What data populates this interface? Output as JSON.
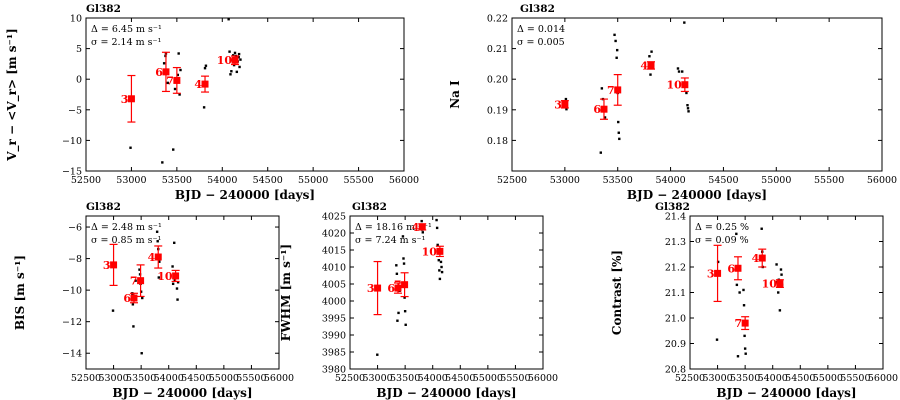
{
  "chart_data": [
    {
      "type": "scatter",
      "title": "Gl382",
      "xlabel": "BJD − 240000 [days]",
      "ylabel": "V_r − <V_r> [m s⁻¹]",
      "xlim": [
        52500,
        56000
      ],
      "ylim": [
        -15,
        10
      ],
      "xticks": [
        52500,
        53000,
        53500,
        54000,
        54500,
        55000,
        55500,
        56000
      ],
      "yticks": [
        -15,
        -10,
        -5,
        0,
        5,
        10
      ],
      "ytick_labels": [
        "−15",
        "−10",
        "−5",
        "0",
        "5",
        "10"
      ],
      "stats": [
        "Δ = 6.45 m s⁻¹",
        "σ = 2.14 m s⁻¹"
      ],
      "raw_points": [
        [
          52990,
          -11.2
        ],
        [
          53340,
          -13.6
        ],
        [
          53360,
          2.6
        ],
        [
          53375,
          3.8
        ],
        [
          53380,
          4.2
        ],
        [
          53390,
          1.0
        ],
        [
          53400,
          -0.6
        ],
        [
          53460,
          -11.5
        ],
        [
          53480,
          -1.6
        ],
        [
          53510,
          0.7
        ],
        [
          53520,
          4.2
        ],
        [
          53530,
          -2.5
        ],
        [
          53540,
          1.5
        ],
        [
          53800,
          -4.6
        ],
        [
          53810,
          1.8
        ],
        [
          53820,
          2.2
        ],
        [
          54070,
          9.8
        ],
        [
          54080,
          4.5
        ],
        [
          54090,
          0.8
        ],
        [
          54100,
          1.3
        ],
        [
          54110,
          3.1
        ],
        [
          54120,
          3.9
        ],
        [
          54130,
          2.3
        ],
        [
          54140,
          4.3
        ],
        [
          54150,
          3.8
        ],
        [
          54160,
          1.2
        ],
        [
          54170,
          2.9
        ],
        [
          54180,
          3.6
        ],
        [
          54185,
          4.1
        ],
        [
          54190,
          2.0
        ],
        [
          54200,
          3.2
        ]
      ],
      "bins": [
        {
          "label": "3",
          "x": 53000,
          "y": -3.2,
          "err": 3.8
        },
        {
          "label": "6",
          "x": 53380,
          "y": 1.2,
          "err": 3.2
        },
        {
          "label": "7",
          "x": 53500,
          "y": -0.2,
          "err": 2.1
        },
        {
          "label": "4",
          "x": 53810,
          "y": -0.8,
          "err": 1.3
        },
        {
          "label": "10",
          "x": 54140,
          "y": 3.1,
          "err": 0.7
        }
      ]
    },
    {
      "type": "scatter",
      "title": "Gl382",
      "xlabel": "BJD − 240000 [days]",
      "ylabel": "Na I",
      "xlim": [
        52500,
        56000
      ],
      "ylim": [
        0.17,
        0.22
      ],
      "xticks": [
        52500,
        53000,
        53500,
        54000,
        54500,
        55000,
        55500,
        56000
      ],
      "yticks": [
        0.17,
        0.18,
        0.19,
        0.2,
        0.21,
        0.22
      ],
      "ytick_labels": [
        "",
        "0.18",
        "0.19",
        "0.20",
        "0.21",
        "0.22"
      ],
      "stats": [
        "Δ = 0.014",
        "σ = 0.005"
      ],
      "raw_points": [
        [
          52995,
          0.1912
        ],
        [
          53010,
          0.1935
        ],
        [
          53015,
          0.1902
        ],
        [
          53340,
          0.176
        ],
        [
          53350,
          0.197
        ],
        [
          53360,
          0.1935
        ],
        [
          53380,
          0.1875
        ],
        [
          53470,
          0.2145
        ],
        [
          53480,
          0.2125
        ],
        [
          53490,
          0.207
        ],
        [
          53495,
          0.2095
        ],
        [
          53500,
          0.1955
        ],
        [
          53505,
          0.186
        ],
        [
          53510,
          0.1825
        ],
        [
          53515,
          0.1805
        ],
        [
          53800,
          0.2075
        ],
        [
          53810,
          0.2015
        ],
        [
          53820,
          0.209
        ],
        [
          54070,
          0.2035
        ],
        [
          54080,
          0.2025
        ],
        [
          54110,
          0.2025
        ],
        [
          54130,
          0.2185
        ],
        [
          54150,
          0.1955
        ],
        [
          54160,
          0.1915
        ],
        [
          54165,
          0.1905
        ],
        [
          54170,
          0.1895
        ]
      ],
      "bins": [
        {
          "label": "3",
          "x": 53000,
          "y": 0.1918,
          "err": 0.0012
        },
        {
          "label": "6",
          "x": 53370,
          "y": 0.1902,
          "err": 0.0033
        },
        {
          "label": "7",
          "x": 53500,
          "y": 0.1965,
          "err": 0.005
        },
        {
          "label": "4",
          "x": 53815,
          "y": 0.2045,
          "err": 0.0012
        },
        {
          "label": "10",
          "x": 54135,
          "y": 0.1982,
          "err": 0.0022
        }
      ]
    },
    {
      "type": "scatter",
      "title": "Gl382",
      "xlabel": "BJD − 240000 [days]",
      "ylabel": "BIS [m s⁻¹]",
      "xlim": [
        52500,
        56000
      ],
      "ylim": [
        -15,
        -5.3
      ],
      "xticks": [
        52500,
        53000,
        53500,
        54000,
        54500,
        55000,
        55500,
        56000
      ],
      "yticks": [
        -14,
        -12,
        -10,
        -8,
        -6
      ],
      "ytick_labels": [
        "−14",
        "−12",
        "−10",
        "−8",
        "−6"
      ],
      "stats": [
        "Δ = 2.48 m s⁻¹",
        "σ = 0.85 m s⁻¹"
      ],
      "raw_points": [
        [
          52990,
          -11.3
        ],
        [
          53340,
          -10.2
        ],
        [
          53350,
          -10.9
        ],
        [
          53360,
          -12.3
        ],
        [
          53380,
          -10.6
        ],
        [
          53400,
          -9.4
        ],
        [
          53470,
          -8.7
        ],
        [
          53480,
          -9.0
        ],
        [
          53490,
          -9.6
        ],
        [
          53500,
          -10.1
        ],
        [
          53510,
          -14.0
        ],
        [
          53520,
          -10.5
        ],
        [
          53790,
          -6.3
        ],
        [
          53800,
          -6.9
        ],
        [
          53810,
          -7.4
        ],
        [
          53820,
          -9.2
        ],
        [
          53830,
          -8.2
        ],
        [
          54070,
          -8.5
        ],
        [
          54080,
          -9.6
        ],
        [
          54100,
          -7.0
        ],
        [
          54110,
          -9.4
        ],
        [
          54130,
          -9.1
        ],
        [
          54150,
          -9.9
        ],
        [
          54160,
          -10.6
        ],
        [
          54170,
          -9.5
        ]
      ],
      "bins": [
        {
          "label": "3",
          "x": 53000,
          "y": -8.4,
          "err": 1.3
        },
        {
          "label": "6",
          "x": 53370,
          "y": -10.5,
          "err": 0.3
        },
        {
          "label": "7",
          "x": 53490,
          "y": -9.4,
          "err": 1.0
        },
        {
          "label": "4",
          "x": 53810,
          "y": -7.9,
          "err": 0.7
        },
        {
          "label": "10",
          "x": 54125,
          "y": -9.1,
          "err": 0.35
        }
      ]
    },
    {
      "type": "scatter",
      "title": "Gl382",
      "xlabel": "BJD − 240000 [days]",
      "ylabel": "FWHM [m s⁻¹]",
      "xlim": [
        52500,
        56000
      ],
      "ylim": [
        3980,
        4025
      ],
      "xticks": [
        52500,
        53000,
        53500,
        54000,
        54500,
        55000,
        55500,
        56000
      ],
      "yticks": [
        3980,
        3985,
        3990,
        3995,
        4000,
        4005,
        4010,
        4015,
        4020,
        4025
      ],
      "ytick_labels": [
        "3980",
        "3985",
        "3990",
        "3995",
        "4000",
        "4005",
        "4010",
        "4015",
        "4020",
        "4025"
      ],
      "stats": [
        "Δ = 18.16 m s⁻¹",
        "σ = 7.24 m s⁻¹"
      ],
      "raw_points": [
        [
          52995,
          3984.2
        ],
        [
          53340,
          4010.5
        ],
        [
          53350,
          4008.0
        ],
        [
          53360,
          3994.2
        ],
        [
          53380,
          3996.5
        ],
        [
          53400,
          4003.0
        ],
        [
          53460,
          4019.0
        ],
        [
          53470,
          4012.5
        ],
        [
          53480,
          4011.0
        ],
        [
          53490,
          4001.0
        ],
        [
          53500,
          3997.0
        ],
        [
          53510,
          3993.0
        ],
        [
          53800,
          4023.5
        ],
        [
          53810,
          4021.0
        ],
        [
          53820,
          4020.2
        ],
        [
          54070,
          4023.8
        ],
        [
          54080,
          4021.5
        ],
        [
          54090,
          4016.5
        ],
        [
          54100,
          4014.5
        ],
        [
          54110,
          4012.0
        ],
        [
          54120,
          4009.0
        ],
        [
          54130,
          4006.5
        ],
        [
          54150,
          4011.5
        ],
        [
          54160,
          4010.0
        ],
        [
          54170,
          4008.5
        ]
      ],
      "bins": [
        {
          "label": "3",
          "x": 53000,
          "y": 4003.8,
          "err": 7.8
        },
        {
          "label": "6",
          "x": 53370,
          "y": 4003.8,
          "err": 1.5
        },
        {
          "label": "7",
          "x": 53490,
          "y": 4004.8,
          "err": 3.5
        },
        {
          "label": "4",
          "x": 53810,
          "y": 4021.8,
          "err": 0.9
        },
        {
          "label": "10",
          "x": 54130,
          "y": 4014.6,
          "err": 1.5
        }
      ]
    },
    {
      "type": "scatter",
      "title": "Gl382",
      "xlabel": "BJD − 240000 [days]",
      "ylabel": "Contrast [%]",
      "xlim": [
        52500,
        56000
      ],
      "ylim": [
        20.8,
        21.4
      ],
      "xticks": [
        52500,
        53000,
        53500,
        54000,
        54500,
        55000,
        55500,
        56000
      ],
      "yticks": [
        20.8,
        20.9,
        21.0,
        21.1,
        21.2,
        21.3,
        21.4
      ],
      "ytick_labels": [
        "20.8",
        "20.9",
        "21.0",
        "21.1",
        "21.2",
        "21.3",
        "21.4"
      ],
      "stats": [
        "Δ = 0.25 %",
        "σ = 0.09 %"
      ],
      "raw_points": [
        [
          52990,
          20.915
        ],
        [
          53010,
          21.22
        ],
        [
          53340,
          21.33
        ],
        [
          53350,
          21.13
        ],
        [
          53360,
          21.2
        ],
        [
          53370,
          20.85
        ],
        [
          53400,
          21.1
        ],
        [
          53470,
          21.11
        ],
        [
          53480,
          21.05
        ],
        [
          53490,
          20.93
        ],
        [
          53500,
          20.88
        ],
        [
          53510,
          20.86
        ],
        [
          53800,
          21.35
        ],
        [
          53810,
          21.26
        ],
        [
          53820,
          21.2
        ],
        [
          54070,
          21.21
        ],
        [
          54080,
          21.14
        ],
        [
          54100,
          21.1
        ],
        [
          54110,
          21.15
        ],
        [
          54130,
          21.03
        ],
        [
          54150,
          21.19
        ],
        [
          54160,
          21.17
        ],
        [
          54170,
          21.13
        ]
      ],
      "bins": [
        {
          "label": "3",
          "x": 53000,
          "y": 21.175,
          "err": 0.11
        },
        {
          "label": "6",
          "x": 53370,
          "y": 21.195,
          "err": 0.045
        },
        {
          "label": "7",
          "x": 53500,
          "y": 20.98,
          "err": 0.025
        },
        {
          "label": "4",
          "x": 53810,
          "y": 21.235,
          "err": 0.035
        },
        {
          "label": "10",
          "x": 54130,
          "y": 21.135,
          "err": 0.015
        }
      ]
    }
  ]
}
